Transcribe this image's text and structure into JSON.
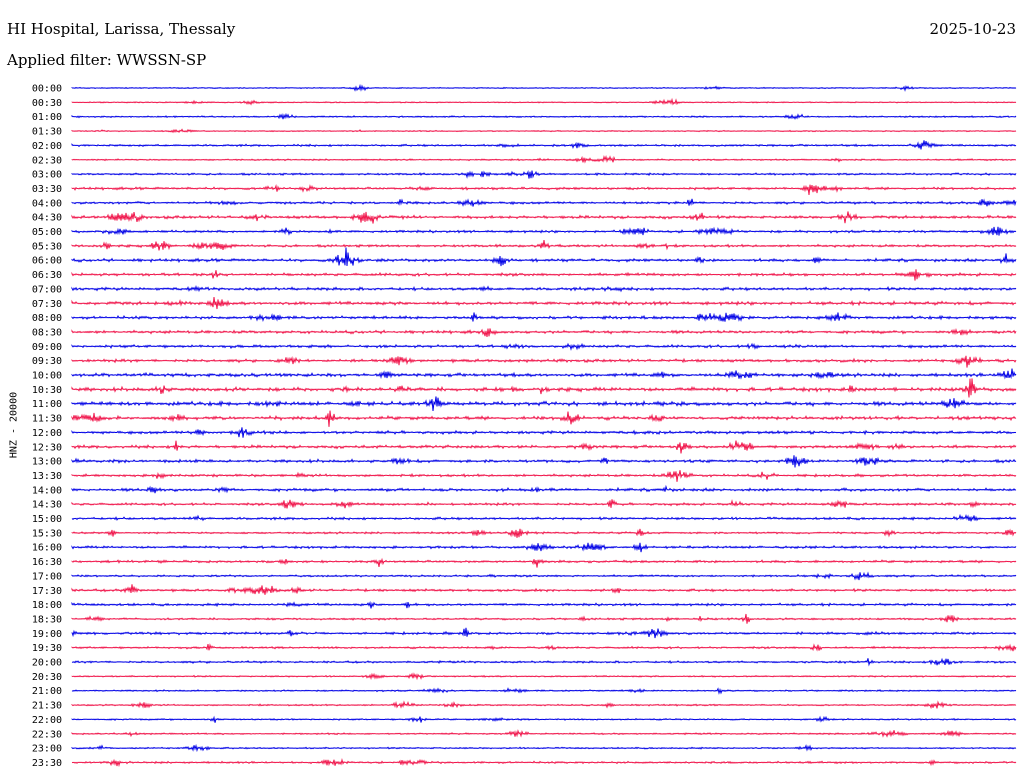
{
  "header": {
    "station": "HI Hospital, Larissa, Thessaly",
    "date": "2025-10-23",
    "filter": "Applied filter: WWSSN-SP"
  },
  "chart_data": {
    "type": "line",
    "title": "HI Hospital, Larissa, Thessaly",
    "subtitle": "Applied filter: WWSSN-SP",
    "ylabel": "HNZ - 20000",
    "xlabel": "",
    "grid": false,
    "legend": "none",
    "colors": [
      "#0000e6",
      "#f0144a"
    ],
    "rows": [
      {
        "label": "00:00",
        "amp": 1
      },
      {
        "label": "00:30",
        "amp": 1
      },
      {
        "label": "01:00",
        "amp": 2
      },
      {
        "label": "01:30",
        "amp": 1
      },
      {
        "label": "02:00",
        "amp": 3
      },
      {
        "label": "02:30",
        "amp": 2
      },
      {
        "label": "03:00",
        "amp": 3
      },
      {
        "label": "03:30",
        "amp": 4
      },
      {
        "label": "04:00",
        "amp": 4
      },
      {
        "label": "04:30",
        "amp": 5
      },
      {
        "label": "05:00",
        "amp": 4
      },
      {
        "label": "05:30",
        "amp": 4
      },
      {
        "label": "06:00",
        "amp": 5
      },
      {
        "label": "06:30",
        "amp": 5
      },
      {
        "label": "07:00",
        "amp": 5
      },
      {
        "label": "07:30",
        "amp": 6
      },
      {
        "label": "08:00",
        "amp": 5
      },
      {
        "label": "08:30",
        "amp": 5
      },
      {
        "label": "09:00",
        "amp": 5
      },
      {
        "label": "09:30",
        "amp": 5
      },
      {
        "label": "10:00",
        "amp": 6
      },
      {
        "label": "10:30",
        "amp": 7
      },
      {
        "label": "11:00",
        "amp": 7
      },
      {
        "label": "11:30",
        "amp": 6
      },
      {
        "label": "12:00",
        "amp": 5
      },
      {
        "label": "12:30",
        "amp": 5
      },
      {
        "label": "13:00",
        "amp": 5
      },
      {
        "label": "13:30",
        "amp": 4
      },
      {
        "label": "14:00",
        "amp": 5
      },
      {
        "label": "14:30",
        "amp": 4
      },
      {
        "label": "15:00",
        "amp": 4
      },
      {
        "label": "15:30",
        "amp": 3
      },
      {
        "label": "16:00",
        "amp": 4
      },
      {
        "label": "16:30",
        "amp": 4
      },
      {
        "label": "17:00",
        "amp": 3
      },
      {
        "label": "17:30",
        "amp": 4
      },
      {
        "label": "18:00",
        "amp": 4
      },
      {
        "label": "18:30",
        "amp": 3
      },
      {
        "label": "19:00",
        "amp": 4
      },
      {
        "label": "19:30",
        "amp": 3
      },
      {
        "label": "20:00",
        "amp": 3
      },
      {
        "label": "20:30",
        "amp": 2
      },
      {
        "label": "21:00",
        "amp": 2
      },
      {
        "label": "21:30",
        "amp": 2
      },
      {
        "label": "22:00",
        "amp": 2
      },
      {
        "label": "22:30",
        "amp": 2
      },
      {
        "label": "23:00",
        "amp": 2
      },
      {
        "label": "23:30",
        "amp": 3
      }
    ]
  }
}
